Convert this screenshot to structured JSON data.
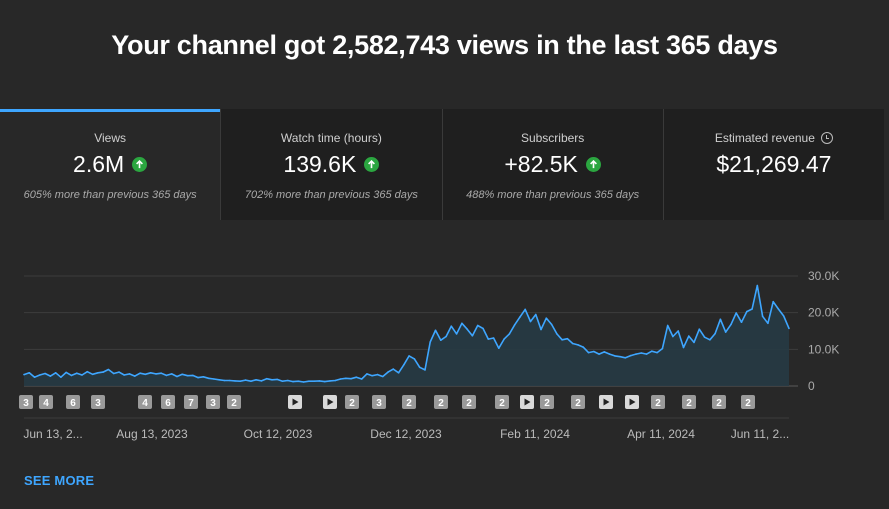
{
  "headline": "Your channel got 2,582,743 views in the last 365 days",
  "cards": [
    {
      "label": "Views",
      "value": "2.6M",
      "sub": "605% more than previous 365 days"
    },
    {
      "label": "Watch time (hours)",
      "value": "139.6K",
      "sub": "702% more than previous 365 days"
    },
    {
      "label": "Subscribers",
      "value": "+82.5K",
      "sub": "488% more than previous 365 days"
    },
    {
      "label": "Estimated revenue",
      "value": "$21,269.47",
      "sub": ""
    }
  ],
  "see_more": "SEE MORE",
  "colors": {
    "accent": "#3ea6ff",
    "line": "#3ea6ff",
    "up": "#2ba640"
  },
  "chart_data": {
    "type": "area",
    "ylim": [
      0,
      30000
    ],
    "y_ticks": [
      {
        "v": 30000,
        "label": "30.0K"
      },
      {
        "v": 20000,
        "label": "20.0K"
      },
      {
        "v": 10000,
        "label": "10.0K"
      },
      {
        "v": 0,
        "label": "0"
      }
    ],
    "x_labels": [
      "Jun 13, 2...",
      "Aug 13, 2023",
      "Oct 12, 2023",
      "Dec 12, 2023",
      "Feb 11, 2024",
      "Apr 11, 2024",
      "Jun 11, 2..."
    ],
    "series": [
      {
        "name": "Views",
        "values": [
          3100,
          3600,
          2400,
          3000,
          3400,
          2700,
          3600,
          2400,
          3700,
          2900,
          3500,
          3000,
          3900,
          3200,
          3600,
          3800,
          4500,
          3400,
          3800,
          3000,
          3300,
          2700,
          3500,
          3200,
          3600,
          3300,
          3500,
          2900,
          3300,
          2600,
          3200,
          2800,
          2900,
          2300,
          2500,
          2100,
          1900,
          1700,
          1500,
          1500,
          1400,
          1300,
          1600,
          1300,
          1700,
          1400,
          2000,
          1700,
          1800,
          1300,
          1500,
          1200,
          1300,
          1100,
          1300,
          1300,
          1400,
          1200,
          1400,
          1500,
          1900,
          2100,
          2000,
          2400,
          1900,
          3300,
          2800,
          3100,
          2600,
          3800,
          4600,
          3600,
          5800,
          8200,
          7400,
          5100,
          4400,
          12000,
          15200,
          12500,
          13500,
          16300,
          14200,
          17100,
          15500,
          13700,
          16500,
          15700,
          12800,
          13100,
          10300,
          12800,
          14200,
          16700,
          18800,
          20900,
          17600,
          19500,
          15400,
          18500,
          16800,
          14200,
          12600,
          12900,
          11600,
          11200,
          10600,
          9100,
          9400,
          8700,
          9300,
          8700,
          8200,
          8000,
          7700,
          8300,
          8700,
          9000,
          8700,
          9500,
          9100,
          10200,
          16500,
          13500,
          15000,
          10500,
          13600,
          11900,
          15500,
          13300,
          12600,
          14300,
          18200,
          14700,
          16800,
          19900,
          17400,
          20300,
          21000,
          27400,
          19000,
          17100,
          23000,
          21000,
          19100,
          15700
        ]
      }
    ],
    "video_markers": [
      "3",
      "4",
      "6",
      "3",
      "4",
      "6",
      "7",
      "3",
      "2",
      "play",
      "play",
      "2",
      "3",
      "2",
      "2",
      "2",
      "2",
      "play",
      "2",
      "2",
      "play",
      "play",
      "2",
      "2",
      "2",
      "2"
    ]
  }
}
